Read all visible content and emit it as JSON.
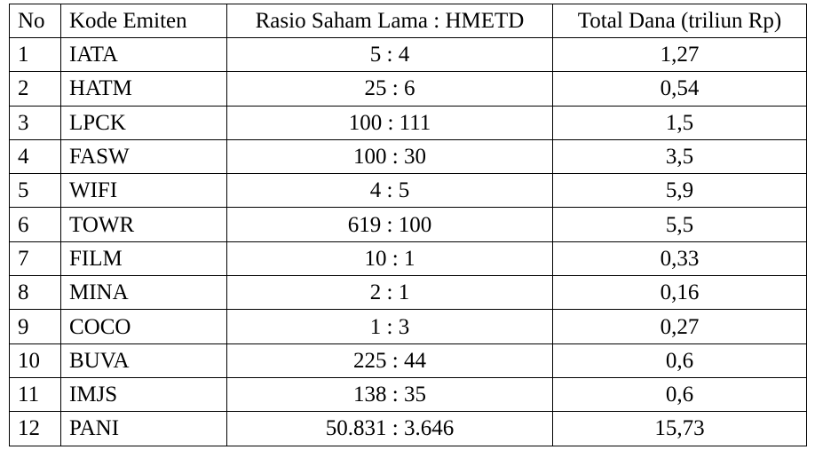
{
  "table": {
    "header": [
      "No",
      "Kode Emiten",
      "Rasio Saham Lama : HMETD",
      "Total Dana (triliun Rp)"
    ],
    "rows": [
      [
        "1",
        "IATA",
        "5 : 4",
        "1,27"
      ],
      [
        "2",
        "HATM",
        "25 : 6",
        "0,54"
      ],
      [
        "3",
        "LPCK",
        "100 : 111",
        "1,5"
      ],
      [
        "4",
        "FASW",
        "100 : 30",
        "3,5"
      ],
      [
        "5",
        "WIFI",
        "4 : 5",
        "5,9"
      ],
      [
        "6",
        "TOWR",
        "619 : 100",
        "5,5"
      ],
      [
        "7",
        "FILM",
        "10 : 1",
        "0,33"
      ],
      [
        "8",
        "MINA",
        "2 : 1",
        "0,16"
      ],
      [
        "9",
        "COCO",
        "1 : 3",
        "0,27"
      ],
      [
        "10",
        "BUVA",
        "225 : 44",
        "0,6"
      ],
      [
        "11",
        "IMJS",
        "138 : 35",
        "0,6"
      ],
      [
        "12",
        "PANI",
        "50.831 : 3.646",
        "15,73"
      ]
    ]
  }
}
